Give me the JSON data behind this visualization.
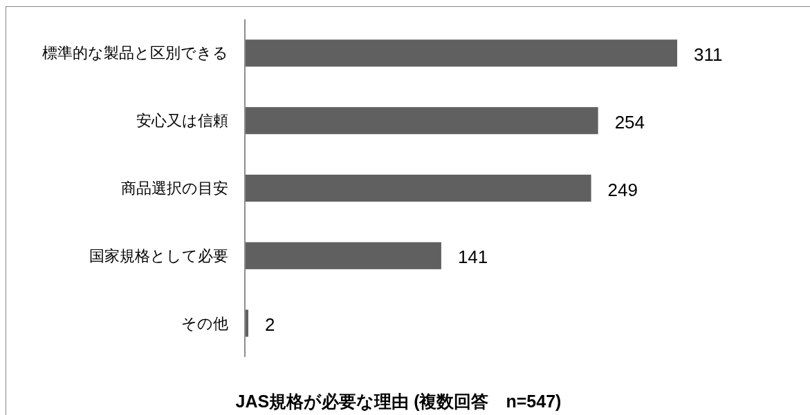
{
  "chart_data": {
    "type": "bar",
    "orientation": "horizontal",
    "title": "JAS規格が必要な理由 (複数回答　n=547)",
    "categories": [
      "標準的な製品と区別できる",
      "安心又は信頼",
      "商品選択の目安",
      "国家規格として必要",
      "その他"
    ],
    "values": [
      311,
      254,
      249,
      141,
      2
    ],
    "color": "#606060",
    "data_labels": true
  }
}
